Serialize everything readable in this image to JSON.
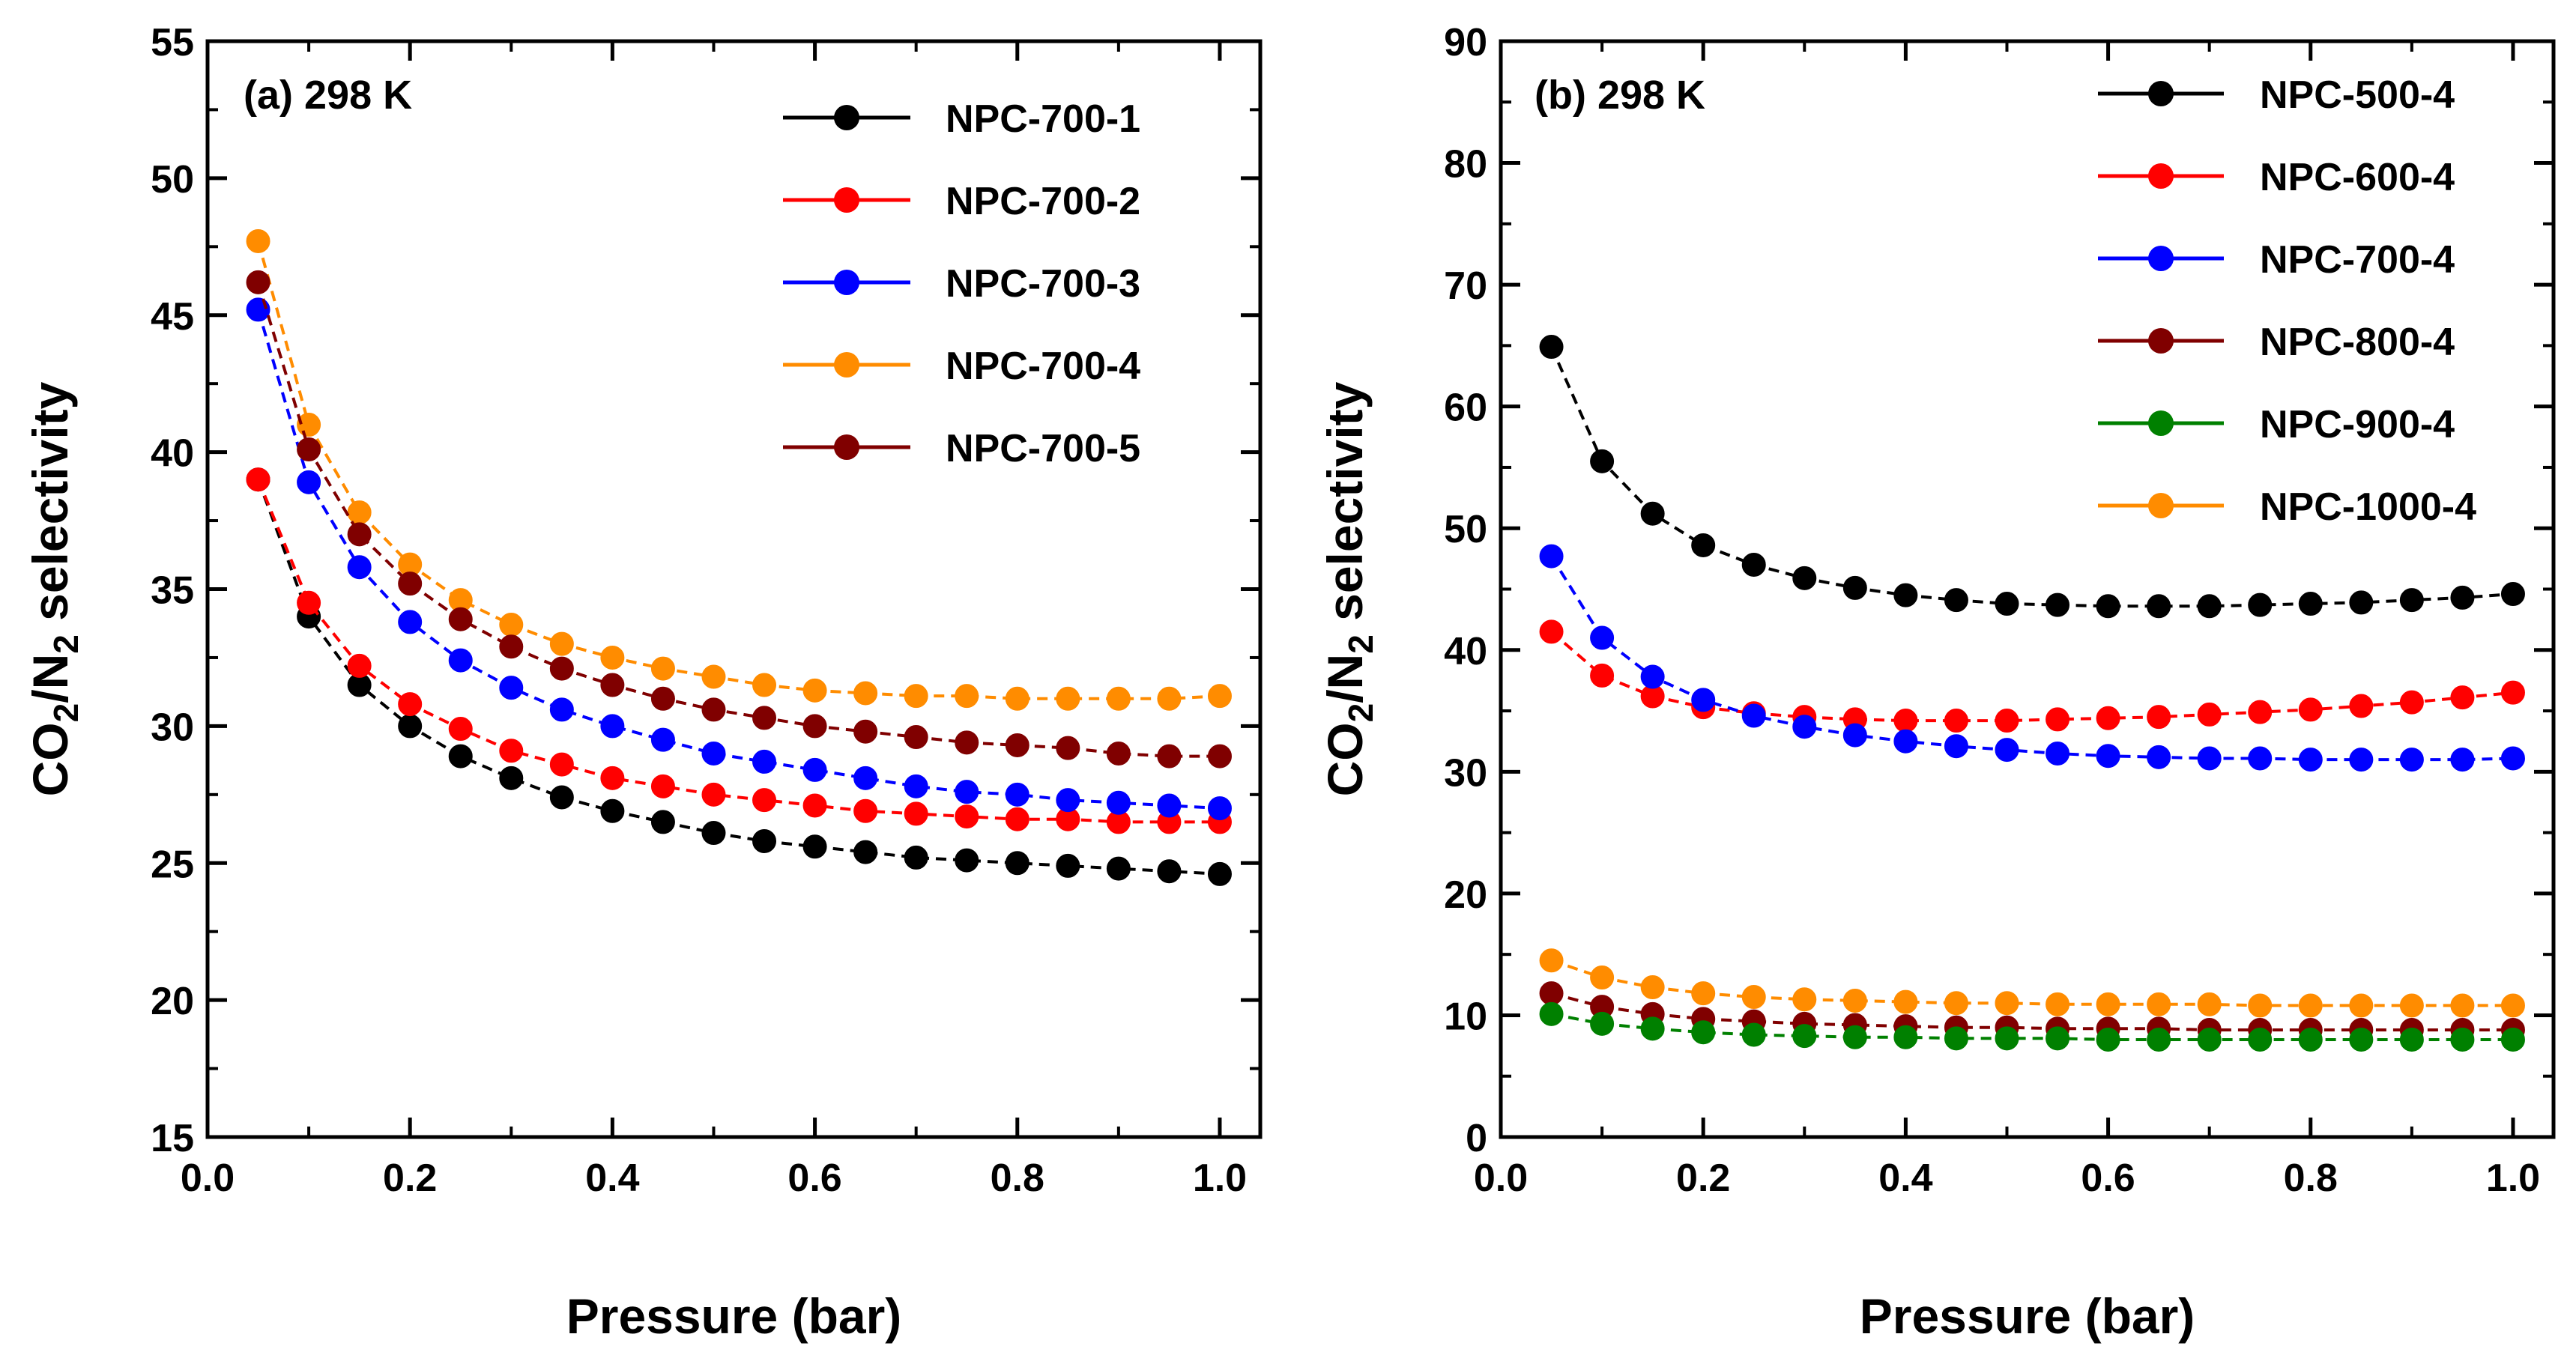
{
  "chart_data": [
    {
      "type": "line",
      "panel_label": "(a) 298 K",
      "xlabel": "Pressure (bar)",
      "ylabel_main": "CO",
      "ylabel_sub1": "2",
      "ylabel_mid": "/N",
      "ylabel_sub2": "2",
      "ylabel_rest": " selectivity",
      "xlim": [
        0.0,
        1.04
      ],
      "ylim": [
        15,
        55
      ],
      "xticks": [
        0.0,
        0.2,
        0.4,
        0.6,
        0.8,
        1.0
      ],
      "xtick_labels": [
        "0.0",
        "0.2",
        "0.4",
        "0.6",
        "0.8",
        "1.0"
      ],
      "yticks": [
        15,
        20,
        25,
        30,
        35,
        40,
        45,
        50,
        55
      ],
      "ytick_labels": [
        "15",
        "20",
        "25",
        "30",
        "35",
        "40",
        "45",
        "50",
        "55"
      ],
      "legend_position": "top-right",
      "x": [
        0.05,
        0.1,
        0.15,
        0.2,
        0.25,
        0.3,
        0.35,
        0.4,
        0.45,
        0.5,
        0.55,
        0.6,
        0.65,
        0.7,
        0.75,
        0.8,
        0.85,
        0.9,
        0.95,
        1.0
      ],
      "series": [
        {
          "name": "NPC-700-1",
          "color": "#000000",
          "values": [
            39.0,
            34.0,
            31.5,
            30.0,
            28.9,
            28.1,
            27.4,
            26.9,
            26.5,
            26.1,
            25.8,
            25.6,
            25.4,
            25.2,
            25.1,
            25.0,
            24.9,
            24.8,
            24.7,
            24.6
          ]
        },
        {
          "name": "NPC-700-2",
          "color": "#ff0000",
          "values": [
            39.0,
            34.5,
            32.2,
            30.8,
            29.9,
            29.1,
            28.6,
            28.1,
            27.8,
            27.5,
            27.3,
            27.1,
            26.9,
            26.8,
            26.7,
            26.6,
            26.6,
            26.5,
            26.5,
            26.5
          ]
        },
        {
          "name": "NPC-700-3",
          "color": "#0000ff",
          "values": [
            45.2,
            38.9,
            35.8,
            33.8,
            32.4,
            31.4,
            30.6,
            30.0,
            29.5,
            29.0,
            28.7,
            28.4,
            28.1,
            27.8,
            27.6,
            27.5,
            27.3,
            27.2,
            27.1,
            27.0
          ]
        },
        {
          "name": "NPC-700-4",
          "color": "#ff8c00",
          "values": [
            47.7,
            41.0,
            37.8,
            35.9,
            34.6,
            33.7,
            33.0,
            32.5,
            32.1,
            31.8,
            31.5,
            31.3,
            31.2,
            31.1,
            31.1,
            31.0,
            31.0,
            31.0,
            31.0,
            31.1
          ]
        },
        {
          "name": "NPC-700-5",
          "color": "#800000",
          "values": [
            46.2,
            40.1,
            37.0,
            35.2,
            33.9,
            32.9,
            32.1,
            31.5,
            31.0,
            30.6,
            30.3,
            30.0,
            29.8,
            29.6,
            29.4,
            29.3,
            29.2,
            29.0,
            28.9,
            28.9
          ]
        }
      ]
    },
    {
      "type": "line",
      "panel_label": "(b) 298 K",
      "xlabel": "Pressure (bar)",
      "ylabel_main": "CO",
      "ylabel_sub1": "2",
      "ylabel_mid": "/N",
      "ylabel_sub2": "2",
      "ylabel_rest": " selectivity",
      "xlim": [
        0.0,
        1.04
      ],
      "ylim": [
        0,
        90
      ],
      "xticks": [
        0.0,
        0.2,
        0.4,
        0.6,
        0.8,
        1.0
      ],
      "xtick_labels": [
        "0.0",
        "0.2",
        "0.4",
        "0.6",
        "0.8",
        "1.0"
      ],
      "yticks": [
        0,
        10,
        20,
        30,
        40,
        50,
        60,
        70,
        80,
        90
      ],
      "ytick_labels": [
        "0",
        "10",
        "20",
        "30",
        "40",
        "50",
        "60",
        "70",
        "80",
        "90"
      ],
      "legend_position": "top-right",
      "x": [
        0.05,
        0.1,
        0.15,
        0.2,
        0.25,
        0.3,
        0.35,
        0.4,
        0.45,
        0.5,
        0.55,
        0.6,
        0.65,
        0.7,
        0.75,
        0.8,
        0.85,
        0.9,
        0.95,
        1.0
      ],
      "series": [
        {
          "name": "NPC-500-4",
          "color": "#000000",
          "values": [
            64.9,
            55.5,
            51.2,
            48.6,
            47.0,
            45.9,
            45.1,
            44.5,
            44.1,
            43.8,
            43.7,
            43.6,
            43.6,
            43.6,
            43.7,
            43.8,
            43.9,
            44.1,
            44.3,
            44.6
          ]
        },
        {
          "name": "NPC-600-4",
          "color": "#ff0000",
          "values": [
            41.5,
            37.9,
            36.2,
            35.3,
            34.8,
            34.5,
            34.3,
            34.2,
            34.2,
            34.2,
            34.3,
            34.4,
            34.5,
            34.7,
            34.9,
            35.1,
            35.4,
            35.7,
            36.1,
            36.5
          ]
        },
        {
          "name": "NPC-700-4",
          "color": "#0000ff",
          "values": [
            47.7,
            41.0,
            37.8,
            35.9,
            34.6,
            33.7,
            33.0,
            32.5,
            32.1,
            31.8,
            31.5,
            31.3,
            31.2,
            31.1,
            31.1,
            31.0,
            31.0,
            31.0,
            31.0,
            31.1
          ]
        },
        {
          "name": "NPC-800-4",
          "color": "#800000",
          "values": [
            11.8,
            10.7,
            10.1,
            9.7,
            9.5,
            9.3,
            9.2,
            9.1,
            9.0,
            9.0,
            8.9,
            8.9,
            8.9,
            8.8,
            8.8,
            8.8,
            8.8,
            8.8,
            8.8,
            8.8
          ]
        },
        {
          "name": "NPC-900-4",
          "color": "#008000",
          "values": [
            10.1,
            9.3,
            8.9,
            8.6,
            8.4,
            8.3,
            8.2,
            8.2,
            8.1,
            8.1,
            8.1,
            8.0,
            8.0,
            8.0,
            8.0,
            8.0,
            8.0,
            8.0,
            8.0,
            8.0
          ]
        },
        {
          "name": "NPC-1000-4",
          "color": "#ff8c00",
          "values": [
            14.5,
            13.1,
            12.3,
            11.8,
            11.5,
            11.3,
            11.2,
            11.1,
            11.0,
            11.0,
            10.9,
            10.9,
            10.9,
            10.9,
            10.8,
            10.8,
            10.8,
            10.8,
            10.8,
            10.8
          ]
        }
      ]
    }
  ]
}
